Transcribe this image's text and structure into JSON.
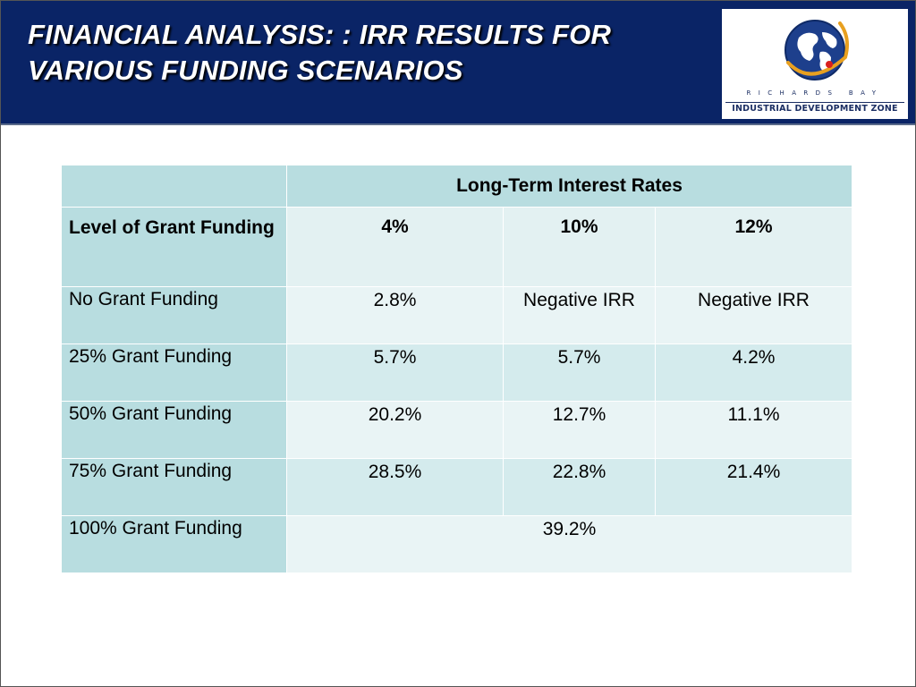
{
  "header": {
    "title_line1": "FINANCIAL ANALYSIS: : IRR RESULTS FOR",
    "title_line2": "VARIOUS FUNDING SCENARIOS",
    "logo_line1": "RICHARDS BAY",
    "logo_line2": "INDUSTRIAL DEVELOPMENT ZONE"
  },
  "table": {
    "group_header": "Long-Term Interest Rates",
    "row_header_label": "Level of Grant Funding",
    "columns": [
      "4%",
      "10%",
      "12%"
    ],
    "rows": [
      {
        "label": "No Grant Funding",
        "values": [
          "2.8%",
          "Negative IRR",
          "Negative IRR"
        ]
      },
      {
        "label": "25% Grant Funding",
        "values": [
          "5.7%",
          "5.7%",
          "4.2%"
        ]
      },
      {
        "label": "50% Grant Funding",
        "values": [
          "20.2%",
          "12.7%",
          "11.1%"
        ]
      },
      {
        "label": "75% Grant Funding",
        "values": [
          "28.5%",
          "22.8%",
          "21.4%"
        ]
      }
    ],
    "last_row": {
      "label": "100% Grant Funding",
      "value": "39.2%"
    }
  },
  "colors": {
    "header_bg": "#0a2466",
    "table_label_bg": "#b8dde0",
    "table_cell_light": "#e9f4f5",
    "table_cell_dark": "#d4ebed"
  }
}
